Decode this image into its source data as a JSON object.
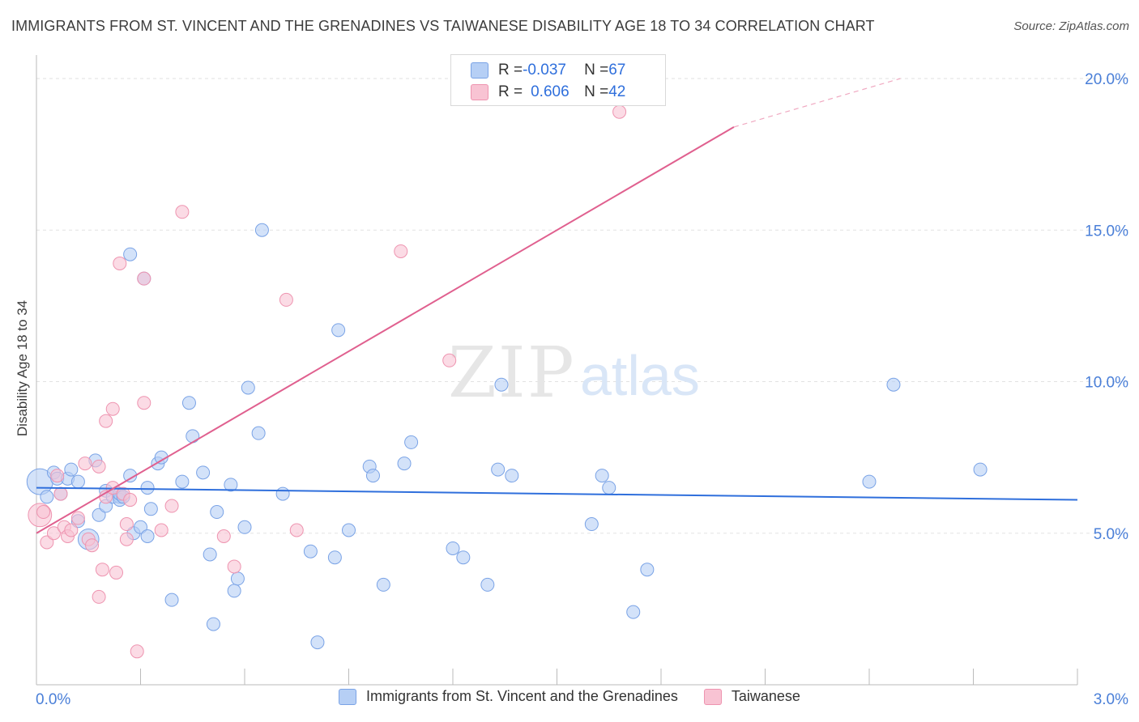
{
  "title": "IMMIGRANTS FROM ST. VINCENT AND THE GRENADINES VS TAIWANESE DISABILITY AGE 18 TO 34 CORRELATION CHART",
  "source_prefix": "Source: ",
  "source_link": "ZipAtlas.com",
  "watermark_zip": "ZIP",
  "watermark_atlas": "atlas",
  "stats": {
    "row1": {
      "r_label": "R = ",
      "r_value": "-0.037",
      "n_label": "N = ",
      "n_value": "67"
    },
    "row2": {
      "r_label": "R = ",
      "r_value": "0.606",
      "n_label": "N = ",
      "n_value": "42"
    }
  },
  "colors": {
    "blue_fill": "#b6cff5",
    "blue_stroke": "#7aa3e6",
    "blue_line": "#2f6fdc",
    "pink_fill": "#f8c3d3",
    "pink_stroke": "#ee94b0",
    "pink_line": "#e0608f",
    "tick_label": "#4a7fd8",
    "grid": "#e2e2e2"
  },
  "chart_data": {
    "type": "scatter",
    "xlabel": "",
    "ylabel": "Disability Age 18 to 34",
    "xlim": [
      0.0,
      3.0
    ],
    "ylim": [
      0.0,
      20.0
    ],
    "x_tick_labels": [
      "0.0%",
      "3.0%"
    ],
    "y_tick_values": [
      5,
      10,
      15,
      20
    ],
    "y_tick_labels": [
      "5.0%",
      "10.0%",
      "15.0%",
      "20.0%"
    ],
    "grid": true,
    "series": [
      {
        "name": "Immigrants from St. Vincent and the Grenadines",
        "color": "#b6cff5",
        "trend": {
          "x": [
            0.0,
            3.0
          ],
          "y": [
            6.5,
            6.1
          ]
        },
        "points": [
          {
            "x": 0.01,
            "y": 6.7,
            "s": 2
          },
          {
            "x": 0.03,
            "y": 6.2
          },
          {
            "x": 0.05,
            "y": 7.0
          },
          {
            "x": 0.06,
            "y": 6.8
          },
          {
            "x": 0.07,
            "y": 6.3
          },
          {
            "x": 0.09,
            "y": 6.8
          },
          {
            "x": 0.1,
            "y": 7.1
          },
          {
            "x": 0.12,
            "y": 6.7
          },
          {
            "x": 0.12,
            "y": 5.4
          },
          {
            "x": 0.15,
            "y": 4.8,
            "s": 1.6
          },
          {
            "x": 0.17,
            "y": 7.4
          },
          {
            "x": 0.18,
            "y": 5.6
          },
          {
            "x": 0.2,
            "y": 5.9
          },
          {
            "x": 0.2,
            "y": 6.4
          },
          {
            "x": 0.22,
            "y": 6.2
          },
          {
            "x": 0.24,
            "y": 6.2
          },
          {
            "x": 0.24,
            "y": 6.1
          },
          {
            "x": 0.24,
            "y": 6.3
          },
          {
            "x": 0.25,
            "y": 6.2
          },
          {
            "x": 0.27,
            "y": 6.9
          },
          {
            "x": 0.27,
            "y": 14.2
          },
          {
            "x": 0.28,
            "y": 5.0
          },
          {
            "x": 0.3,
            "y": 5.2
          },
          {
            "x": 0.32,
            "y": 6.5
          },
          {
            "x": 0.31,
            "y": 13.4
          },
          {
            "x": 0.32,
            "y": 4.9
          },
          {
            "x": 0.33,
            "y": 5.8
          },
          {
            "x": 0.35,
            "y": 7.3
          },
          {
            "x": 0.36,
            "y": 7.5
          },
          {
            "x": 0.39,
            "y": 2.8
          },
          {
            "x": 0.42,
            "y": 6.7
          },
          {
            "x": 0.44,
            "y": 9.3
          },
          {
            "x": 0.45,
            "y": 8.2
          },
          {
            "x": 0.48,
            "y": 7.0
          },
          {
            "x": 0.5,
            "y": 4.3
          },
          {
            "x": 0.51,
            "y": 2.0
          },
          {
            "x": 0.52,
            "y": 5.7
          },
          {
            "x": 0.56,
            "y": 6.6
          },
          {
            "x": 0.57,
            "y": 3.1
          },
          {
            "x": 0.58,
            "y": 3.5
          },
          {
            "x": 0.6,
            "y": 5.2
          },
          {
            "x": 0.61,
            "y": 9.8
          },
          {
            "x": 0.64,
            "y": 8.3
          },
          {
            "x": 0.65,
            "y": 15.0
          },
          {
            "x": 0.71,
            "y": 6.3
          },
          {
            "x": 0.79,
            "y": 4.4
          },
          {
            "x": 0.81,
            "y": 1.4
          },
          {
            "x": 0.86,
            "y": 4.2
          },
          {
            "x": 0.87,
            "y": 11.7
          },
          {
            "x": 0.9,
            "y": 5.1
          },
          {
            "x": 0.96,
            "y": 7.2
          },
          {
            "x": 0.97,
            "y": 6.9
          },
          {
            "x": 1.0,
            "y": 3.3
          },
          {
            "x": 1.06,
            "y": 7.3
          },
          {
            "x": 1.08,
            "y": 8.0
          },
          {
            "x": 1.2,
            "y": 4.5
          },
          {
            "x": 1.23,
            "y": 4.2
          },
          {
            "x": 1.3,
            "y": 3.3
          },
          {
            "x": 1.33,
            "y": 7.1
          },
          {
            "x": 1.34,
            "y": 9.9
          },
          {
            "x": 1.37,
            "y": 6.9
          },
          {
            "x": 1.6,
            "y": 5.3
          },
          {
            "x": 1.63,
            "y": 6.9
          },
          {
            "x": 1.65,
            "y": 6.5
          },
          {
            "x": 1.72,
            "y": 2.4
          },
          {
            "x": 1.76,
            "y": 3.8
          },
          {
            "x": 2.4,
            "y": 6.7
          },
          {
            "x": 2.47,
            "y": 9.9
          },
          {
            "x": 2.72,
            "y": 7.1
          }
        ]
      },
      {
        "name": "Taiwanese",
        "color": "#f8c3d3",
        "trend": {
          "x": [
            0.0,
            2.01
          ],
          "y": [
            5.0,
            18.4
          ]
        },
        "trend_dashed": {
          "x": [
            2.01,
            2.49
          ],
          "y": [
            18.4,
            20.0
          ]
        },
        "points": [
          {
            "x": 0.01,
            "y": 5.6,
            "s": 1.8
          },
          {
            "x": 0.02,
            "y": 5.7
          },
          {
            "x": 0.03,
            "y": 4.7
          },
          {
            "x": 0.05,
            "y": 5.0
          },
          {
            "x": 0.06,
            "y": 6.9
          },
          {
            "x": 0.07,
            "y": 6.3
          },
          {
            "x": 0.08,
            "y": 5.2
          },
          {
            "x": 0.09,
            "y": 4.9
          },
          {
            "x": 0.1,
            "y": 5.1
          },
          {
            "x": 0.12,
            "y": 5.5
          },
          {
            "x": 0.14,
            "y": 7.3
          },
          {
            "x": 0.15,
            "y": 4.8
          },
          {
            "x": 0.16,
            "y": 4.6
          },
          {
            "x": 0.18,
            "y": 7.2
          },
          {
            "x": 0.18,
            "y": 2.9
          },
          {
            "x": 0.19,
            "y": 3.8
          },
          {
            "x": 0.2,
            "y": 6.2
          },
          {
            "x": 0.2,
            "y": 8.7
          },
          {
            "x": 0.22,
            "y": 6.5
          },
          {
            "x": 0.22,
            "y": 9.1
          },
          {
            "x": 0.23,
            "y": 3.7
          },
          {
            "x": 0.24,
            "y": 13.9
          },
          {
            "x": 0.25,
            "y": 6.3
          },
          {
            "x": 0.26,
            "y": 5.3
          },
          {
            "x": 0.26,
            "y": 4.8
          },
          {
            "x": 0.27,
            "y": 6.1
          },
          {
            "x": 0.29,
            "y": 1.1
          },
          {
            "x": 0.31,
            "y": 13.4
          },
          {
            "x": 0.31,
            "y": 9.3
          },
          {
            "x": 0.36,
            "y": 5.1
          },
          {
            "x": 0.39,
            "y": 5.9
          },
          {
            "x": 0.42,
            "y": 15.6
          },
          {
            "x": 0.54,
            "y": 4.9
          },
          {
            "x": 0.57,
            "y": 3.9
          },
          {
            "x": 0.72,
            "y": 12.7
          },
          {
            "x": 0.75,
            "y": 5.1
          },
          {
            "x": 1.05,
            "y": 14.3
          },
          {
            "x": 1.19,
            "y": 10.7
          },
          {
            "x": 1.68,
            "y": 18.9
          }
        ]
      }
    ]
  }
}
